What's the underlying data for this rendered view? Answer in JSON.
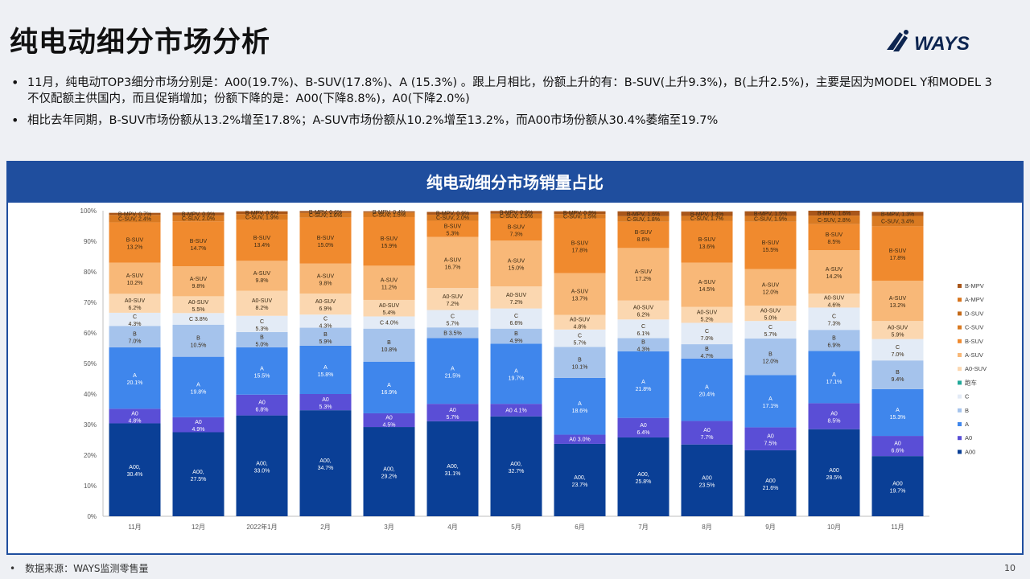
{
  "slide": {
    "title": "纯电动细分市场分析",
    "bullets": [
      "11月，纯电动TOP3细分市场分别是：A00(19.7%)、B-SUV(17.8%)、A (15.3%) 。跟上月相比，份额上升的有：B-SUV(上升9.3%)，B(上升2.5%)，主要是因为MODEL Y和MODEL 3不仅配额主供国内，而且促销增加；份额下降的是：A00(下降8.8%)，A0(下降2.0%)",
      "相比去年同期，B-SUV市场份额从13.2%增至17.8%；A-SUV市场份额从10.2%增至13.2%，而A00市场份额从30.4%萎缩至19.7%"
    ],
    "footnote": "数据来源：WAYS监测零售量",
    "page_number": "10",
    "logo_text": "WAYS"
  },
  "chart_data": {
    "type": "bar",
    "stacked": true,
    "title": "纯电动细分市场销量占比",
    "categories": [
      "11月",
      "12月",
      "2022年1月",
      "2月",
      "3月",
      "4月",
      "5月",
      "6月",
      "7月",
      "8月",
      "9月",
      "10月",
      "11月"
    ],
    "ylim": [
      0,
      100
    ],
    "y_ticks": [
      "0%",
      "10%",
      "20%",
      "30%",
      "40%",
      "50%",
      "60%",
      "70%",
      "80%",
      "90%",
      "100%"
    ],
    "grid": false,
    "legend_position": "right",
    "series": [
      {
        "name": "A00",
        "color": "#0a3f96",
        "labels": [
          "A00,",
          "A00,",
          "A00,",
          "A00,",
          "A00,",
          "A00,",
          "A00,",
          "A00,",
          "A00,",
          "A00",
          "A00",
          "A00",
          "A00"
        ],
        "values": [
          30.4,
          27.5,
          33.0,
          34.7,
          29.2,
          31.1,
          32.7,
          23.7,
          25.8,
          23.5,
          21.6,
          28.5,
          19.7
        ]
      },
      {
        "name": "A0",
        "color": "#5a4ed6",
        "labels": [
          "A0",
          "A0",
          "A0",
          "A0",
          "A0",
          "A0",
          "A0",
          "A0",
          "A0",
          "A0",
          "A0",
          "A0",
          "A0"
        ],
        "values": [
          4.8,
          4.9,
          6.8,
          5.3,
          4.5,
          5.7,
          4.1,
          3.0,
          6.4,
          7.7,
          7.5,
          8.5,
          6.6
        ]
      },
      {
        "name": "A",
        "color": "#3f86ec",
        "labels": [
          "A",
          "A",
          "A",
          "A",
          "A",
          "A",
          "A",
          "A",
          "A",
          "A",
          "A",
          "A",
          "A"
        ],
        "values": [
          20.1,
          19.8,
          15.5,
          15.8,
          16.9,
          21.5,
          19.7,
          18.6,
          21.8,
          20.4,
          17.1,
          17.1,
          15.3
        ]
      },
      {
        "name": "B",
        "color": "#a5c3ec",
        "labels": [
          "B",
          "B",
          "B",
          "B",
          "B",
          "B",
          "B",
          "B",
          "B",
          "B",
          "B",
          "B",
          "B"
        ],
        "values": [
          7.0,
          10.5,
          5.0,
          5.9,
          10.8,
          3.5,
          4.9,
          10.1,
          4.3,
          4.7,
          12.0,
          6.9,
          9.4
        ]
      },
      {
        "name": "C",
        "color": "#e3ebf6",
        "labels": [
          "C",
          "C",
          "C",
          "C",
          "C",
          "C",
          "C",
          "C",
          "C",
          "C",
          "C",
          "C",
          "C"
        ],
        "values": [
          4.3,
          3.8,
          5.3,
          4.3,
          4.0,
          5.7,
          6.6,
          5.7,
          6.1,
          7.0,
          5.7,
          7.3,
          7.0
        ]
      },
      {
        "name": "跑车",
        "color": "#22a99a",
        "labels": [
          "",
          "",
          "",
          "",
          "",
          "",
          "",
          "",
          "",
          "",
          "",
          "",
          ""
        ],
        "values": [
          0,
          0,
          0,
          0,
          0,
          0,
          0,
          0,
          0,
          0,
          0,
          0,
          0
        ]
      },
      {
        "name": "A0-SUV",
        "color": "#fbd7b0",
        "labels": [
          "A0-SUV",
          "A0-SUV",
          "A0-SUV",
          "A0-SUV",
          "A0-SUV",
          "A0-SUV",
          "A0-SUV",
          "A0-SUV",
          "A0-SUV",
          "A0-SUV",
          "A0-SUV",
          "A0-SUV",
          "A0-SUV"
        ],
        "values": [
          6.2,
          5.5,
          8.2,
          6.9,
          5.4,
          7.2,
          7.2,
          4.8,
          6.2,
          5.2,
          5.0,
          4.6,
          5.9
        ]
      },
      {
        "name": "A-SUV",
        "color": "#f8b878",
        "labels": [
          "A-SUV",
          "A-SUV",
          "A-SUV",
          "A-SUV",
          "A-SUV",
          "A-SUV",
          "A-SUV",
          "A-SUV",
          "A-SUV",
          "A-SUV",
          "A-SUV",
          "A-SUV",
          "A-SUV"
        ],
        "values": [
          10.2,
          9.8,
          9.8,
          9.8,
          11.2,
          16.7,
          15.0,
          13.7,
          17.2,
          14.5,
          12.0,
          14.2,
          13.2
        ]
      },
      {
        "name": "B-SUV",
        "color": "#f08a2e",
        "labels": [
          "B-SUV",
          "B-SUV",
          "B-SUV",
          "B-SUV",
          "B-SUV",
          "B-SUV",
          "B-SUV",
          "B-SUV",
          "B-SUV",
          "B-SUV",
          "B-SUV",
          "B-SUV",
          "B-SUV"
        ],
        "values": [
          13.2,
          14.7,
          13.4,
          15.0,
          15.9,
          5.3,
          7.3,
          17.8,
          8.6,
          13.6,
          15.5,
          8.5,
          17.8
        ]
      },
      {
        "name": "C-SUV",
        "color": "#d97a22",
        "labels": [
          "C-SUV,",
          "C-SUV,",
          "C-SUV,",
          "C-SUV,",
          "C-SUV,",
          "C-SUV,",
          "C-SUV,",
          "C-SUV,",
          "C-SUV,",
          "C-SUV,",
          "C-SUV,",
          "C-SUV,",
          "C-SUV,"
        ],
        "values": [
          2.4,
          2.0,
          1.9,
          1.6,
          1.5,
          2.0,
          1.5,
          1.5,
          1.8,
          1.7,
          1.9,
          2.8,
          3.4
        ]
      },
      {
        "name": "D-SUV",
        "color": "#c46a1a",
        "labels": [
          "",
          "",
          "",
          "",
          "",
          "",
          "",
          "",
          "",
          "",
          "",
          "",
          ""
        ],
        "values": [
          0,
          0,
          0,
          0,
          0,
          0,
          0,
          0,
          0,
          0,
          0,
          0,
          0
        ]
      },
      {
        "name": "A-MPV",
        "color": "#d8741c",
        "labels": [
          "",
          "",
          "",
          "",
          "",
          "",
          "",
          "",
          "",
          "",
          "",
          "",
          ""
        ],
        "values": [
          0,
          0,
          0,
          0,
          0,
          0,
          0,
          0,
          0,
          0,
          0,
          0,
          0
        ]
      },
      {
        "name": "B-MPV",
        "color": "#a8561a",
        "labels": [
          "B-MPV,",
          "B-MPV,",
          "B-MPV,",
          "B-MPV,",
          "B-MPV,",
          "B-MPV,",
          "B-MPV,",
          "B-MPV,",
          "B-MPV,",
          "B-MPV,",
          "B-MPV,",
          "B-MPV,",
          "B-MPV,"
        ],
        "values": [
          0.7,
          0.9,
          0.9,
          0.6,
          0.4,
          0.9,
          0.9,
          0.9,
          1.6,
          1.4,
          1.5,
          1.6,
          1.3
        ]
      }
    ],
    "legend_order": [
      "B-MPV",
      "A-MPV",
      "D-SUV",
      "C-SUV",
      "B-SUV",
      "A-SUV",
      "A0-SUV",
      "跑车",
      "C",
      "B",
      "A",
      "A0",
      "A00"
    ]
  }
}
